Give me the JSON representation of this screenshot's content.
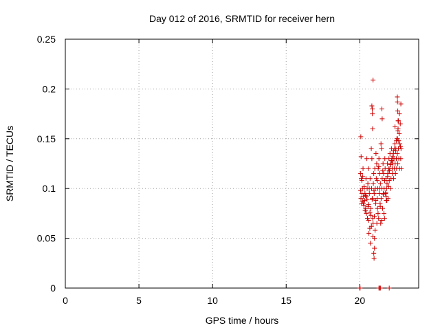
{
  "chart_data": {
    "type": "scatter",
    "title": "Day 012 of 2016, SRMTID for receiver hern",
    "xlabel": "GPS time / hours",
    "ylabel": "SRMTID / TECUs",
    "xlim": [
      0,
      24
    ],
    "ylim": [
      0,
      0.25
    ],
    "xticks": [
      0,
      5,
      10,
      15,
      20
    ],
    "yticks": [
      0,
      0.05,
      0.1,
      0.15,
      0.2,
      0.25
    ],
    "xtick_labels": [
      "0",
      "5",
      "10",
      "15",
      "20"
    ],
    "ytick_labels": [
      "0",
      "0.05",
      "0.1",
      "0.15",
      "0.2",
      "0.25"
    ],
    "grid": true,
    "marker": "+",
    "colors": {
      "points": "#cc0000",
      "grid": "#a0a0a0",
      "axes": "#000000"
    },
    "series": [
      {
        "x": [
          20.05,
          20.08,
          20.1,
          20.12,
          20.15,
          20.18,
          20.2,
          20.22,
          20.25,
          20.28,
          20.3,
          20.33,
          20.35,
          20.38,
          20.4,
          20.42,
          20.45,
          20.48,
          20.5,
          20.52,
          20.55,
          20.58,
          20.6,
          20.62,
          20.65,
          20.68,
          20.7,
          20.72,
          20.75,
          20.78,
          20.8,
          20.82,
          20.85,
          20.88,
          20.9,
          20.92,
          20.95,
          20.98,
          21.0,
          21.02,
          21.05,
          21.08,
          21.1,
          21.12,
          21.15,
          21.18,
          21.2,
          21.22,
          21.25,
          21.28,
          21.3,
          21.32,
          21.35,
          21.38,
          21.4,
          21.42,
          21.45,
          21.48,
          21.5,
          21.52,
          21.55,
          21.58,
          21.6,
          21.62,
          21.65,
          21.68,
          21.7,
          21.72,
          21.75,
          21.78,
          21.8,
          21.82,
          21.85,
          21.88,
          21.9,
          21.92,
          21.95,
          21.98,
          22.0,
          22.02,
          22.05,
          22.08,
          22.1,
          22.12,
          22.15,
          22.18,
          22.2,
          22.22,
          22.25,
          22.28,
          22.3,
          22.32,
          22.35,
          22.38,
          22.4,
          22.42,
          22.45,
          22.48,
          22.5,
          22.52,
          22.55,
          22.58,
          22.6,
          22.62,
          22.65,
          22.68,
          22.7,
          22.72,
          22.75,
          22.78,
          22.8,
          22.82,
          20.06,
          20.14,
          20.24,
          20.36,
          20.44,
          20.56,
          20.64,
          20.76,
          20.84,
          20.96,
          21.04,
          21.16,
          21.24,
          21.36,
          21.44,
          21.56,
          21.64,
          21.76,
          21.84,
          21.96,
          22.04,
          22.16,
          22.24,
          22.36,
          22.44,
          22.56,
          22.64,
          22.76,
          20.09,
          20.19,
          20.29,
          20.39,
          20.49,
          20.59,
          20.69,
          20.79,
          20.89,
          20.99,
          21.09,
          21.19,
          21.29,
          21.39,
          21.49,
          21.59,
          21.69,
          21.79,
          21.89,
          21.99,
          22.09,
          22.19,
          22.29,
          22.39,
          22.49,
          22.59,
          22.69,
          22.79,
          20.85,
          20.86,
          20.87,
          21.5,
          21.52,
          22.55,
          22.56,
          22.58,
          22.6,
          22.62,
          20.95,
          20.97,
          21.0,
          20.9,
          20.82,
          20.07,
          20.0,
          20.0,
          20.02,
          21.3,
          21.35,
          21.4,
          22.0
        ],
        "y": [
          0.098,
          0.09,
          0.11,
          0.085,
          0.095,
          0.1,
          0.087,
          0.12,
          0.092,
          0.083,
          0.1,
          0.088,
          0.095,
          0.078,
          0.08,
          0.11,
          0.075,
          0.13,
          0.1,
          0.07,
          0.105,
          0.12,
          0.068,
          0.055,
          0.095,
          0.06,
          0.11,
          0.045,
          0.08,
          0.14,
          0.1,
          0.13,
          0.09,
          0.07,
          0.065,
          0.105,
          0.115,
          0.095,
          0.04,
          0.12,
          0.1,
          0.085,
          0.135,
          0.11,
          0.125,
          0.09,
          0.08,
          0.1,
          0.12,
          0.07,
          0.13,
          0.095,
          0.115,
          0.085,
          0.105,
          0.065,
          0.09,
          0.14,
          0.1,
          0.11,
          0.08,
          0.125,
          0.095,
          0.115,
          0.1,
          0.07,
          0.13,
          0.12,
          0.095,
          0.11,
          0.088,
          0.1,
          0.105,
          0.125,
          0.115,
          0.09,
          0.12,
          0.13,
          0.108,
          0.118,
          0.135,
          0.1,
          0.125,
          0.11,
          0.14,
          0.13,
          0.12,
          0.115,
          0.125,
          0.135,
          0.11,
          0.13,
          0.12,
          0.145,
          0.125,
          0.115,
          0.14,
          0.13,
          0.12,
          0.15,
          0.135,
          0.125,
          0.16,
          0.14,
          0.13,
          0.155,
          0.12,
          0.145,
          0.165,
          0.13,
          0.14,
          0.12,
          0.115,
          0.108,
          0.085,
          0.078,
          0.092,
          0.082,
          0.1,
          0.073,
          0.089,
          0.098,
          0.058,
          0.065,
          0.075,
          0.1,
          0.145,
          0.118,
          0.075,
          0.096,
          0.088,
          0.102,
          0.12,
          0.128,
          0.132,
          0.14,
          0.138,
          0.15,
          0.148,
          0.142,
          0.132,
          0.112,
          0.102,
          0.093,
          0.089,
          0.084,
          0.076,
          0.062,
          0.052,
          0.072,
          0.088,
          0.108,
          0.122,
          0.082,
          0.068,
          0.094,
          0.108,
          0.092,
          0.112,
          0.118,
          0.124,
          0.128,
          0.138,
          0.162,
          0.148,
          0.158,
          0.175,
          0.185,
          0.18,
          0.175,
          0.16,
          0.18,
          0.17,
          0.192,
          0.187,
          0.178,
          0.168,
          0.168,
          0.035,
          0.03,
          0.05,
          0.209,
          0.183,
          0.152,
          0.0,
          0.0,
          0.0,
          0.0,
          0.0,
          0.0,
          0.0
        ]
      }
    ]
  }
}
